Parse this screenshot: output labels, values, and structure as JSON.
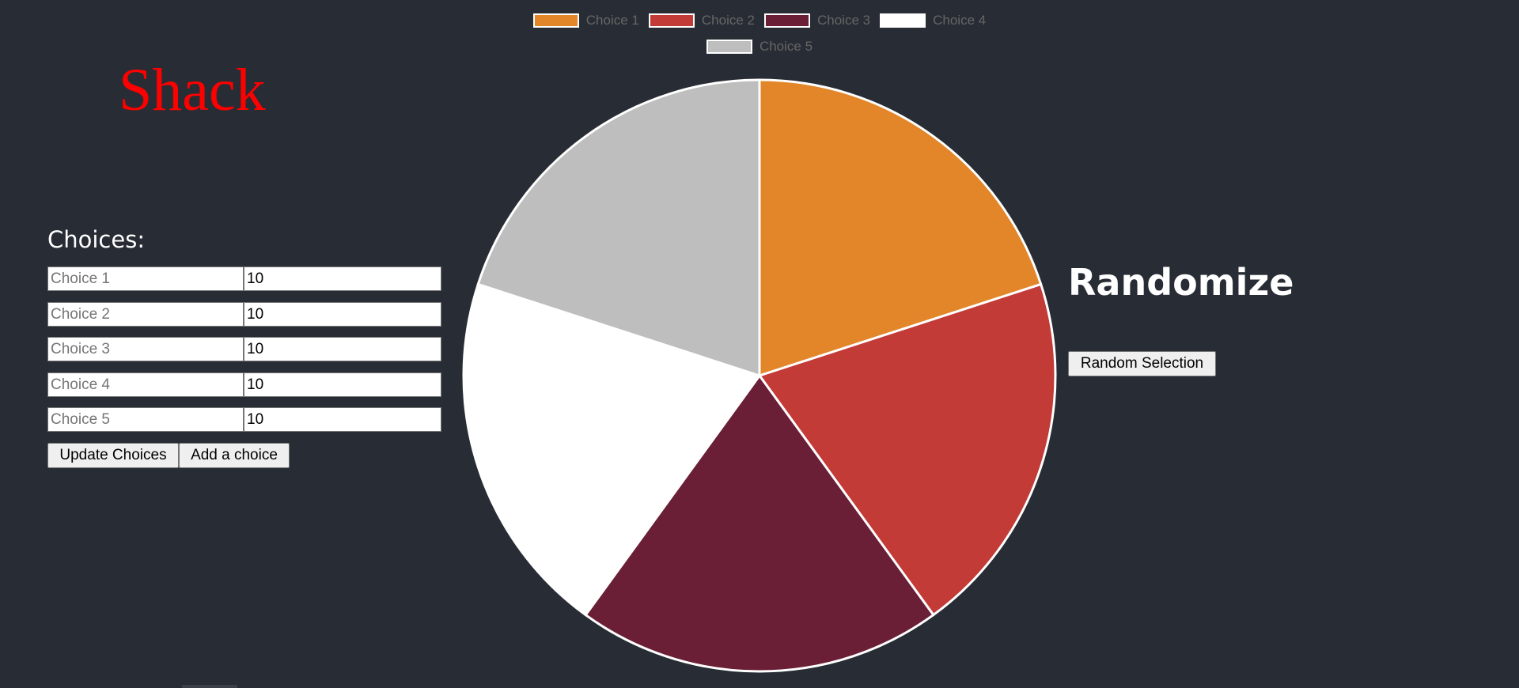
{
  "app": {
    "logo": "Shack"
  },
  "choices": {
    "title": "Choices:",
    "rows": [
      {
        "placeholder": "Choice 1",
        "value": "10"
      },
      {
        "placeholder": "Choice 2",
        "value": "10"
      },
      {
        "placeholder": "Choice 3",
        "value": "10"
      },
      {
        "placeholder": "Choice 4",
        "value": "10"
      },
      {
        "placeholder": "Choice 5",
        "value": "10"
      }
    ],
    "update_label": "Update Choices",
    "add_label": "Add a choice"
  },
  "randomize": {
    "title": "Randomize",
    "button_label": "Random Selection"
  },
  "chart_data": {
    "type": "pie",
    "labels": [
      "Choice 1",
      "Choice 2",
      "Choice 3",
      "Choice 4",
      "Choice 5"
    ],
    "values": [
      10,
      10,
      10,
      10,
      10
    ],
    "colors": [
      "#e28629",
      "#c23b37",
      "#6a1f36",
      "#ffffff",
      "#bebebe"
    ],
    "legend_position": "top"
  }
}
